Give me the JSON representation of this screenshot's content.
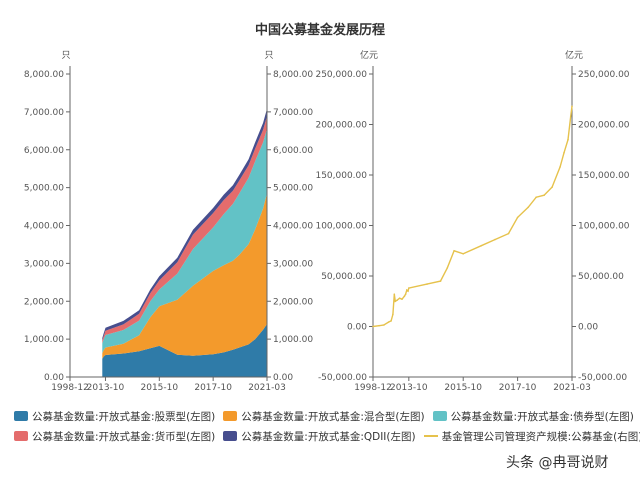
{
  "chart_data": [
    {
      "type": "area",
      "stacked": true,
      "title": "中国公募基金发展历程",
      "y_unit_left": "只",
      "y_unit_right": "只",
      "x_ticks": [
        "1998-12",
        "2013-10",
        "2015-10",
        "2017-10",
        "2021-03"
      ],
      "y_ticks": [
        "0.00",
        "1,000.00",
        "2,000.00",
        "3,000.00",
        "4,000.00",
        "5,000.00",
        "6,000.00",
        "7,000.00",
        "8,000.00"
      ],
      "ylim": [
        0,
        8000
      ],
      "x": [
        "2012-06",
        "2013-01",
        "2013-10",
        "2014-06",
        "2015-01",
        "2015-06",
        "2015-10",
        "2016-06",
        "2017-01",
        "2017-10",
        "2018-06",
        "2019-01",
        "2019-06",
        "2020-01",
        "2020-06",
        "2020-12",
        "2021-03"
      ],
      "series": [
        {
          "name": "公募基金数量:开放式基金:股票型(左图)",
          "color": "#2f7ba8",
          "values": [
            480,
            540,
            580,
            620,
            680,
            760,
            820,
            590,
            560,
            600,
            650,
            720,
            780,
            860,
            1000,
            1250,
            1400
          ]
        },
        {
          "name": "公募基金数量:开放式基金:混合型(左图)",
          "color": "#f39a2c",
          "values": [
            150,
            170,
            200,
            260,
            420,
            820,
            1050,
            1450,
            1850,
            2200,
            2300,
            2350,
            2450,
            2650,
            2900,
            3200,
            3450
          ]
        },
        {
          "name": "公募基金数量:开放式基金:债券型(左图)",
          "color": "#62c2c6",
          "values": [
            260,
            290,
            330,
            360,
            390,
            420,
            440,
            690,
            970,
            1150,
            1350,
            1500,
            1620,
            1750,
            1800,
            1750,
            1700
          ]
        },
        {
          "name": "公募基金数量:开放式基金:货币型(左图)",
          "color": "#e46c6c",
          "values": [
            70,
            80,
            110,
            150,
            180,
            210,
            240,
            300,
            380,
            380,
            370,
            350,
            340,
            330,
            330,
            330,
            330
          ]
        },
        {
          "name": "公募基金数量:开放式基金:QDII(左图)",
          "color": "#474e8e",
          "values": [
            70,
            75,
            80,
            90,
            95,
            100,
            110,
            120,
            130,
            135,
            140,
            145,
            150,
            160,
            170,
            180,
            200
          ]
        }
      ]
    },
    {
      "type": "line",
      "y_unit_left": "亿元",
      "y_unit_right": "亿元",
      "x_ticks": [
        "1998-12",
        "2013-10",
        "2015-10",
        "2017-10",
        "2021-03"
      ],
      "y_ticks": [
        "-50,000.00",
        "0.00",
        "50,000.00",
        "100,000.00",
        "150,000.00",
        "200,000.00",
        "250,000.00"
      ],
      "ylim": [
        -50000,
        250000
      ],
      "series": [
        {
          "name": "基金管理公司管理资产规模:公募基金(右图)",
          "color": "#e6c24c",
          "points": [
            [
              "1998-12",
              0
            ],
            [
              "2001-06",
              800
            ],
            [
              "2003-06",
              1500
            ],
            [
              "2005-06",
              4500
            ],
            [
              "2006-06",
              5500
            ],
            [
              "2007-03",
              12000
            ],
            [
              "2007-10",
              32000
            ],
            [
              "2008-03",
              25000
            ],
            [
              "2008-12",
              26000
            ],
            [
              "2009-12",
              28000
            ],
            [
              "2010-12",
              27000
            ],
            [
              "2011-12",
              30000
            ],
            [
              "2012-06",
              32000
            ],
            [
              "2012-12",
              36000
            ],
            [
              "2013-06",
              35000
            ],
            [
              "2013-10",
              38000
            ],
            [
              "2014-06",
              42000
            ],
            [
              "2014-12",
              45000
            ],
            [
              "2015-03",
              58000
            ],
            [
              "2015-06",
              75000
            ],
            [
              "2015-10",
              72000
            ],
            [
              "2016-06",
              80000
            ],
            [
              "2016-12",
              86000
            ],
            [
              "2017-06",
              92000
            ],
            [
              "2017-10",
              108000
            ],
            [
              "2018-06",
              118000
            ],
            [
              "2018-12",
              128000
            ],
            [
              "2019-06",
              130000
            ],
            [
              "2019-12",
              138000
            ],
            [
              "2020-06",
              158000
            ],
            [
              "2020-09",
              172000
            ],
            [
              "2020-12",
              185000
            ],
            [
              "2021-02",
              208000
            ],
            [
              "2021-03",
              218000
            ]
          ]
        }
      ]
    }
  ],
  "legend": [
    {
      "label": "公募基金数量:开放式基金:股票型(左图)",
      "color": "#2f7ba8",
      "kind": "box"
    },
    {
      "label": "公募基金数量:开放式基金:混合型(左图)",
      "color": "#f39a2c",
      "kind": "box"
    },
    {
      "label": "公募基金数量:开放式基金:债券型(左图)",
      "color": "#62c2c6",
      "kind": "box"
    },
    {
      "label": "公募基金数量:开放式基金:货币型(左图)",
      "color": "#e46c6c",
      "kind": "box"
    },
    {
      "label": "公募基金数量:开放式基金:QDII(左图)",
      "color": "#474e8e",
      "kind": "box"
    },
    {
      "label": "基金管理公司管理资产规模:公募基金(右图)",
      "color": "#e6c24c",
      "kind": "line"
    }
  ],
  "watermark": "头条 @冉哥说财"
}
